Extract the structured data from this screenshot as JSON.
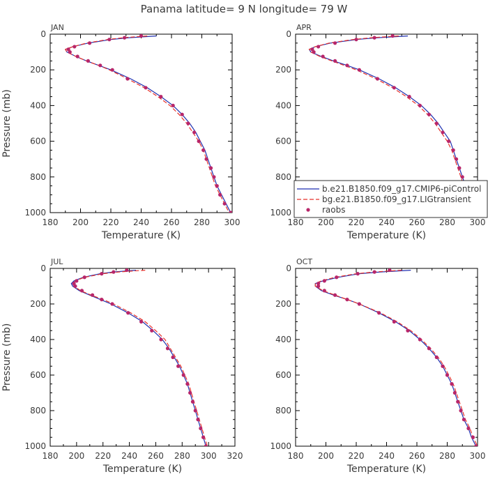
{
  "title": "Panama  latitude= 9 N longitude= 79 W",
  "colors": {
    "model1": "#1f2fb0",
    "model2": "#e8302a",
    "obs": "#b8266a"
  },
  "chart_data": [
    {
      "type": "line",
      "panel_label": "JAN",
      "xlabel": "Temperature (K)",
      "ylabel": "Pressure (mb)",
      "xlim": [
        180,
        300
      ],
      "ylim": [
        1000,
        0
      ],
      "x_ticks": [
        180,
        200,
        220,
        240,
        260,
        280,
        300
      ],
      "y_ticks": [
        0,
        200,
        400,
        600,
        800,
        1000
      ],
      "pressure": [
        10,
        20,
        30,
        50,
        70,
        85,
        100,
        125,
        150,
        175,
        200,
        250,
        300,
        350,
        400,
        450,
        500,
        550,
        600,
        650,
        700,
        750,
        800,
        850,
        900,
        950,
        1000
      ],
      "series": [
        {
          "name": "b.e21.B1850.f09_g17.CMIP6-piControl",
          "key": "model1",
          "style": "solid",
          "values": [
            250,
            232,
            220,
            205,
            195,
            190,
            191,
            197,
            204,
            212,
            220,
            233,
            244,
            253,
            261,
            267,
            272,
            276,
            279,
            282,
            284,
            286,
            288,
            290,
            293,
            296,
            299
          ]
        },
        {
          "name": "bg.e21.B1850.f09_g17.LIGtransient",
          "key": "model2",
          "style": "dashed",
          "values": [
            244,
            228,
            218,
            204,
            195,
            190,
            191,
            197,
            204,
            212,
            219,
            231,
            242,
            251,
            259,
            265,
            270,
            274,
            278,
            281,
            283,
            285,
            287,
            289,
            292,
            295,
            298
          ]
        },
        {
          "name": "raobs",
          "key": "obs",
          "style": "points",
          "values": [
            240,
            229,
            219,
            206,
            196,
            192,
            193,
            198,
            205,
            213,
            221,
            231,
            243,
            253,
            261,
            267,
            271,
            275,
            278,
            281,
            283,
            286,
            288,
            290,
            292,
            295,
            299
          ]
        }
      ]
    },
    {
      "type": "line",
      "panel_label": "APR",
      "xlabel": "Temperature (K)",
      "ylabel": "",
      "xlim": [
        180,
        300
      ],
      "ylim": [
        1000,
        0
      ],
      "x_ticks": [
        180,
        200,
        220,
        240,
        260,
        280,
        300
      ],
      "y_ticks": [
        0,
        200,
        400,
        600,
        800,
        1000
      ],
      "legend": "inside-bottom-right",
      "pressure": [
        10,
        20,
        30,
        50,
        70,
        85,
        100,
        125,
        150,
        175,
        200,
        250,
        300,
        350,
        400,
        450,
        500,
        550,
        600,
        650,
        700,
        750,
        800,
        850,
        900,
        950,
        1000
      ],
      "series": [
        {
          "name": "b.e21.B1850.f09_g17.CMIP6-piControl",
          "key": "model1",
          "style": "solid",
          "values": [
            254,
            234,
            220,
            203,
            193,
            189,
            190,
            197,
            205,
            214,
            222,
            235,
            246,
            255,
            263,
            269,
            274,
            278,
            282,
            284,
            286,
            288,
            290,
            292,
            295,
            298,
            301
          ]
        },
        {
          "name": "bg.e21.B1850.f09_g17.LIGtransient",
          "key": "model2",
          "style": "dashed",
          "values": [
            248,
            230,
            218,
            202,
            193,
            189,
            190,
            196,
            204,
            212,
            220,
            233,
            244,
            253,
            261,
            267,
            272,
            276,
            280,
            283,
            285,
            287,
            289,
            291,
            294,
            297,
            300
          ]
        },
        {
          "name": "raobs",
          "key": "obs",
          "style": "points",
          "values": [
            244,
            232,
            220,
            206,
            195,
            191,
            192,
            198,
            206,
            214,
            222,
            234,
            245,
            255,
            262,
            268,
            273,
            277,
            281,
            284,
            286,
            288,
            290,
            292,
            294,
            297,
            300
          ]
        }
      ]
    },
    {
      "type": "line",
      "panel_label": "JUL",
      "xlabel": "Temperature (K)",
      "ylabel": "Pressure (mb)",
      "xlim": [
        180,
        320
      ],
      "ylim": [
        1000,
        0
      ],
      "x_ticks": [
        180,
        200,
        220,
        240,
        260,
        280,
        300,
        320
      ],
      "y_ticks": [
        0,
        200,
        400,
        600,
        800,
        1000
      ],
      "pressure": [
        10,
        20,
        30,
        50,
        70,
        85,
        100,
        125,
        150,
        175,
        200,
        250,
        300,
        350,
        400,
        450,
        500,
        550,
        600,
        650,
        700,
        750,
        800,
        850,
        900,
        950,
        1000
      ],
      "series": [
        {
          "name": "b.e21.B1850.f09_g17.CMIP6-piControl",
          "key": "model1",
          "style": "solid",
          "values": [
            245,
            228,
            218,
            205,
            198,
            196,
            197,
            202,
            210,
            218,
            226,
            239,
            250,
            258,
            265,
            270,
            274,
            278,
            281,
            284,
            286,
            288,
            290,
            292,
            294,
            296,
            298
          ]
        },
        {
          "name": "bg.e21.B1850.f09_g17.LIGtransient",
          "key": "model2",
          "style": "dashed",
          "values": [
            252,
            232,
            220,
            206,
            199,
            197,
            198,
            203,
            211,
            220,
            228,
            241,
            252,
            260,
            267,
            271,
            275,
            279,
            282,
            285,
            287,
            289,
            291,
            293,
            295,
            297,
            299
          ]
        },
        {
          "name": "raobs",
          "key": "obs",
          "style": "points",
          "values": [
            238,
            228,
            219,
            206,
            200,
            198,
            199,
            204,
            212,
            219,
            227,
            239,
            249,
            257,
            264,
            269,
            273,
            277,
            281,
            284,
            286,
            288,
            290,
            292,
            294,
            296,
            298
          ]
        }
      ]
    },
    {
      "type": "line",
      "panel_label": "OCT",
      "xlabel": "Temperature (K)",
      "ylabel": "",
      "xlim": [
        180,
        300
      ],
      "ylim": [
        1000,
        0
      ],
      "x_ticks": [
        180,
        200,
        220,
        240,
        260,
        280,
        300
      ],
      "y_ticks": [
        0,
        200,
        400,
        600,
        800,
        1000
      ],
      "pressure": [
        10,
        20,
        30,
        50,
        70,
        85,
        100,
        125,
        150,
        175,
        200,
        250,
        300,
        350,
        400,
        450,
        500,
        550,
        600,
        650,
        700,
        750,
        800,
        850,
        900,
        950,
        1000
      ],
      "series": [
        {
          "name": "b.e21.B1850.f09_g17.CMIP6-piControl",
          "key": "model1",
          "style": "solid",
          "values": [
            256,
            236,
            222,
            208,
            198,
            193,
            193,
            197,
            205,
            214,
            222,
            235,
            246,
            255,
            262,
            268,
            273,
            277,
            280,
            283,
            285,
            287,
            289,
            291,
            294,
            296,
            299
          ]
        },
        {
          "name": "bg.e21.B1850.f09_g17.LIGtransient",
          "key": "model2",
          "style": "dashed",
          "values": [
            250,
            232,
            220,
            206,
            197,
            193,
            193,
            198,
            206,
            214,
            222,
            236,
            247,
            256,
            263,
            269,
            274,
            278,
            281,
            284,
            286,
            288,
            290,
            292,
            295,
            297,
            300
          ]
        },
        {
          "name": "raobs",
          "key": "obs",
          "style": "points",
          "values": [
            242,
            232,
            221,
            207,
            199,
            195,
            195,
            199,
            206,
            214,
            222,
            235,
            245,
            254,
            262,
            268,
            273,
            277,
            280,
            283,
            285,
            287,
            289,
            291,
            294,
            297,
            299
          ]
        }
      ]
    }
  ]
}
